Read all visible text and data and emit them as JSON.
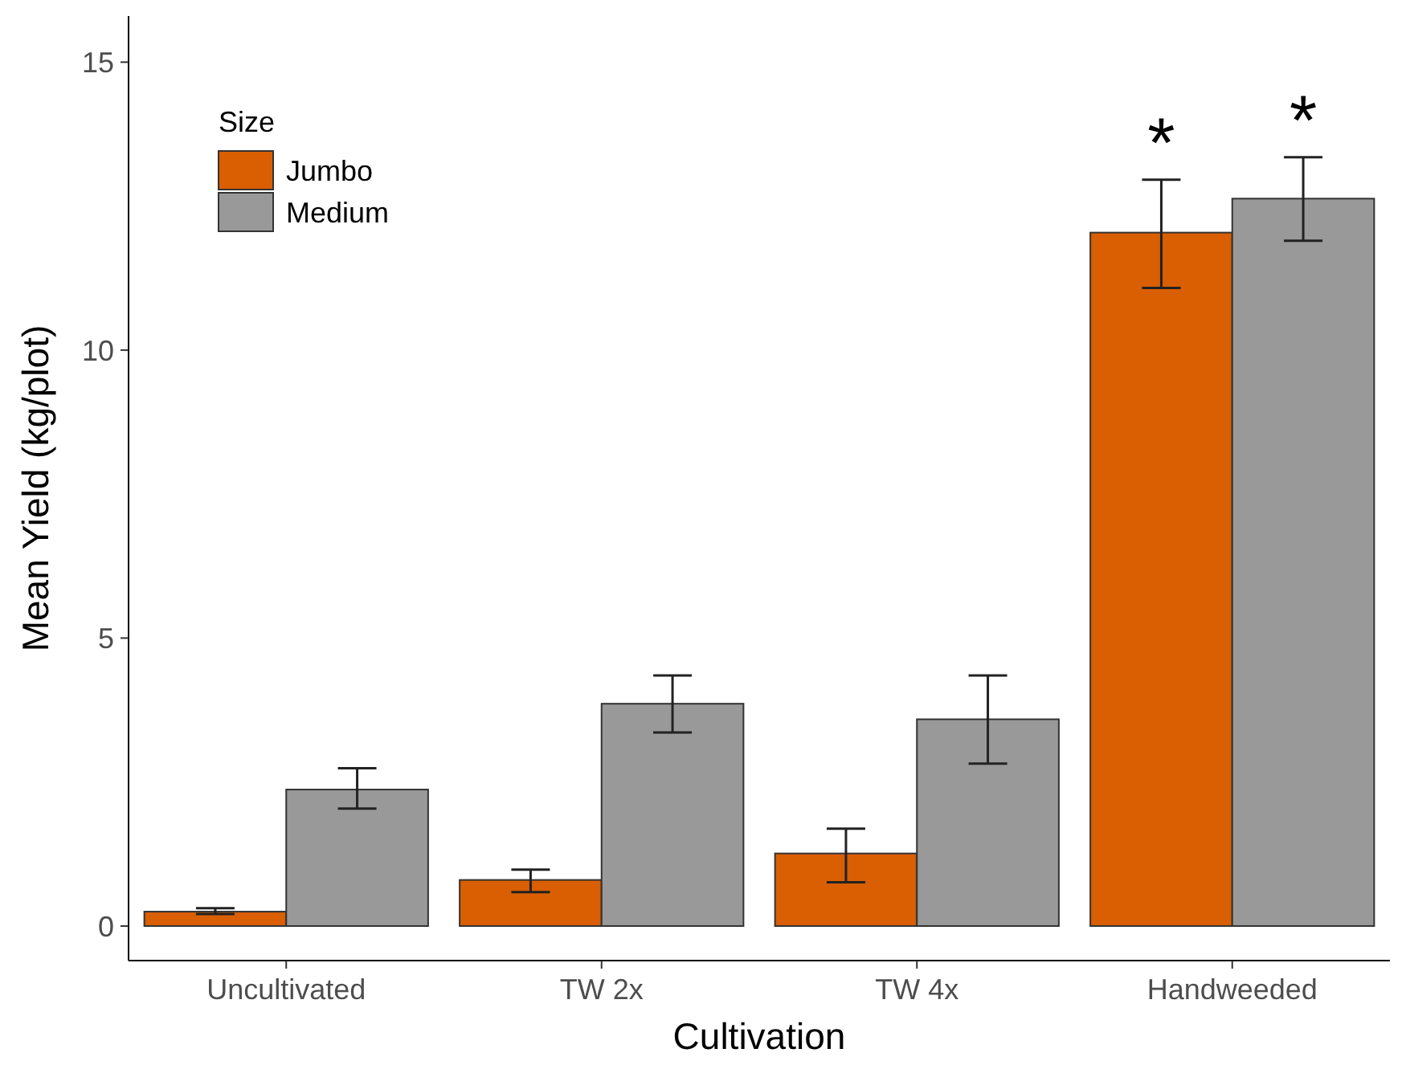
{
  "chart_data": {
    "type": "bar",
    "xlabel": "Cultivation",
    "ylabel": "Mean Yield (kg/plot)",
    "legend_title": "Size",
    "legend": "top left",
    "categories": [
      "Uncultivated",
      "TW 2x",
      "TW 4x",
      "Handweeded"
    ],
    "series": [
      {
        "name": "Jumbo",
        "color": "#d95f02",
        "values": [
          0.25,
          0.8,
          1.26,
          12.04
        ],
        "errors": [
          [
            0.21,
            0.31
          ],
          [
            0.59,
            0.98
          ],
          [
            0.76,
            1.69
          ],
          [
            11.08,
            12.96
          ]
        ]
      },
      {
        "name": "Medium",
        "color": "#999999",
        "values": [
          2.37,
          3.86,
          3.59,
          12.63
        ],
        "errors": [
          [
            2.04,
            2.74
          ],
          [
            3.36,
            4.35
          ],
          [
            2.82,
            4.35
          ],
          [
            11.9,
            13.35
          ]
        ]
      }
    ],
    "ylim": [
      -0.6,
      15.8
    ],
    "yticks": [
      0,
      5,
      10,
      15
    ],
    "grid": false,
    "annotations": [
      "*",
      "*"
    ]
  }
}
